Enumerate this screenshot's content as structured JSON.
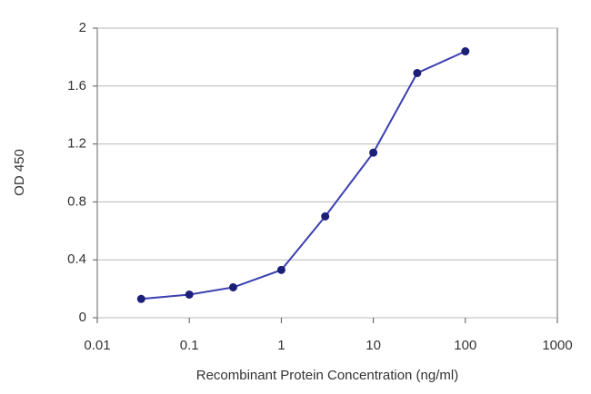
{
  "chart_data": {
    "type": "line",
    "x_label": "Recombinant Protein Concentration (ng/ml)",
    "y_label": "OD 450",
    "x": [
      0.03,
      0.1,
      0.3,
      1,
      3,
      10,
      30,
      100
    ],
    "values": [
      0.13,
      0.16,
      0.21,
      0.33,
      0.7,
      1.14,
      1.69,
      1.84
    ],
    "color": "#3b3fb0",
    "marker_color": "#1c1f78",
    "xscale": "log",
    "xlim": [
      0.01,
      1000
    ],
    "xticks": [
      0.01,
      0.1,
      1,
      10,
      100,
      1000
    ],
    "ylim": [
      0,
      2
    ],
    "yticks": [
      0,
      0.4,
      0.8,
      1.2,
      1.6,
      2
    ],
    "grid": true
  }
}
